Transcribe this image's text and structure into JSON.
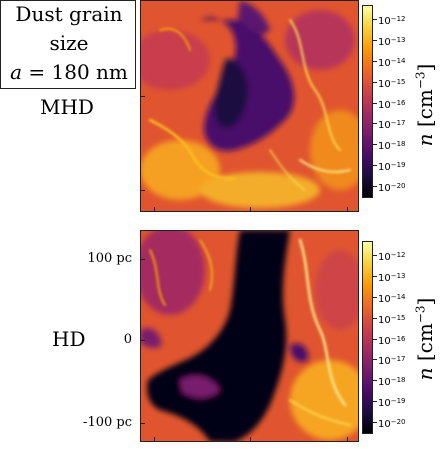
{
  "caption": {
    "line1": "Dust grain",
    "line2": "size",
    "line3_var": "a",
    "line3_rest": " = 180 nm"
  },
  "panels": [
    {
      "label": "MHD"
    },
    {
      "label": "HD"
    }
  ],
  "y_ticks": [
    "100 pc",
    "0",
    "-100 pc"
  ],
  "colorbar": {
    "base": "10",
    "exponents": [
      "−12",
      "−13",
      "−14",
      "−15",
      "−16",
      "−17",
      "−18",
      "−19",
      "−20"
    ],
    "quantity": "n",
    "units_text": " [cm",
    "units_exp": "−3",
    "units_close": "]"
  },
  "colormap": [
    "#000004",
    "#1b0c41",
    "#4a0c6b",
    "#781c6d",
    "#a52c60",
    "#cf4446",
    "#ed6925",
    "#fb9b06",
    "#f7d13d",
    "#fcffa4"
  ]
}
